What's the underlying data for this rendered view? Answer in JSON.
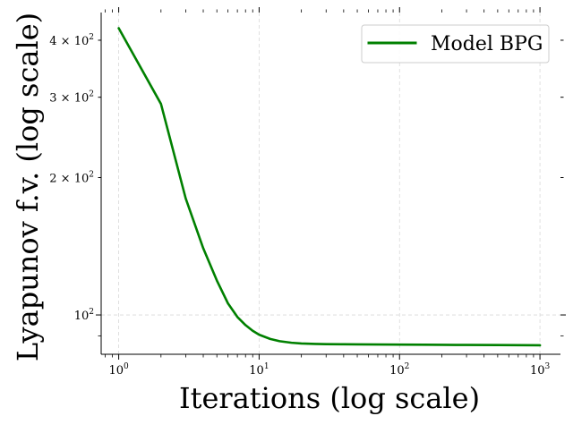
{
  "chart_data": {
    "type": "line",
    "title": "",
    "xlabel": "Iterations (log scale)",
    "ylabel": "Lyapunov f.v.  (log scale)",
    "xscale": "log",
    "yscale": "log",
    "xlim": [
      0.75,
      1400
    ],
    "ylim": [
      82,
      460
    ],
    "grid": true,
    "legend": "top-right",
    "x_ticks": [
      {
        "value": 1,
        "base": "10",
        "exp": "0"
      },
      {
        "value": 10,
        "base": "10",
        "exp": "1"
      },
      {
        "value": 100,
        "base": "10",
        "exp": "2"
      },
      {
        "value": 1000,
        "base": "10",
        "exp": "3"
      }
    ],
    "y_ticks": [
      {
        "value": 100,
        "coef": "",
        "base": "10",
        "exp": "2"
      },
      {
        "value": 200,
        "coef": "2 × ",
        "base": "10",
        "exp": "2"
      },
      {
        "value": 300,
        "coef": "3 × ",
        "base": "10",
        "exp": "2"
      },
      {
        "value": 400,
        "coef": "4 × ",
        "base": "10",
        "exp": "2"
      }
    ],
    "series": [
      {
        "name": "Model BPG",
        "color": "#008000",
        "x": [
          1,
          2,
          3,
          4,
          5,
          6,
          7,
          8,
          9,
          10,
          12,
          14,
          17,
          20,
          25,
          30,
          40,
          50,
          70,
          100,
          150,
          200,
          300,
          500,
          700,
          1000
        ],
        "y": [
          425,
          290,
          180,
          140,
          119,
          106,
          99,
          95,
          92.3,
          90.5,
          88.6,
          87.6,
          86.9,
          86.6,
          86.4,
          86.3,
          86.25,
          86.2,
          86.15,
          86.1,
          86.05,
          86.0,
          85.95,
          85.9,
          85.85,
          85.8
        ]
      }
    ]
  }
}
